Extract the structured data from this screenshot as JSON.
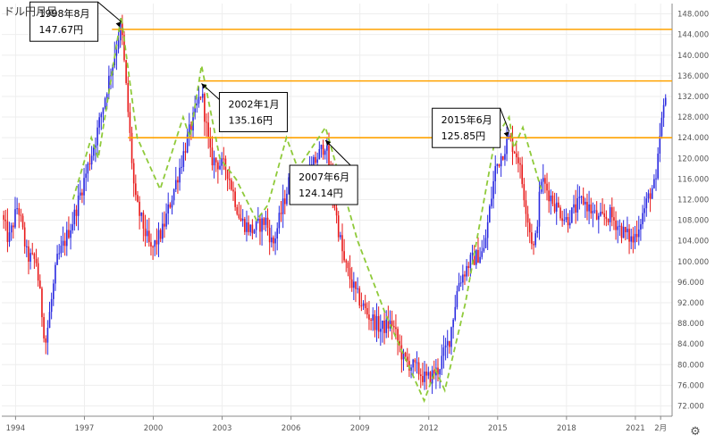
{
  "title": "ドル円月足",
  "settings_icon": "gear-icon",
  "colors": {
    "up": "#2a2ae0",
    "down": "#e81a1a",
    "trend": "#8fca3a",
    "level": "#ffa200",
    "grid": "#eeeeee",
    "axis": "#888888"
  },
  "chart_data": {
    "type": "candlestick",
    "ylim": [
      70,
      150
    ],
    "xlim": [
      1993.4,
      2022.6
    ],
    "y_ticks": [
      72,
      76,
      80,
      84,
      88,
      92,
      96,
      100,
      104,
      108,
      112,
      116,
      120,
      124,
      128,
      132,
      136,
      140,
      144,
      148
    ],
    "y_tick_labels": [
      "72.000",
      "76.000",
      "80.000",
      "84.000",
      "88.000",
      "92.000",
      "96.000",
      "100.000",
      "104.000",
      "108.000",
      "112.000",
      "116.000",
      "120.000",
      "124.000",
      "128.000",
      "132.000",
      "136.000",
      "140.000",
      "144.000",
      "148.000"
    ],
    "x_ticks": [
      {
        "x": 1994.0,
        "label": "1994"
      },
      {
        "x": 1997.0,
        "label": "1997"
      },
      {
        "x": 2000.0,
        "label": "2000"
      },
      {
        "x": 2003.0,
        "label": "2003"
      },
      {
        "x": 2006.0,
        "label": "2006"
      },
      {
        "x": 2009.0,
        "label": "2009"
      },
      {
        "x": 2012.0,
        "label": "2012"
      },
      {
        "x": 2015.0,
        "label": "2015"
      },
      {
        "x": 2018.0,
        "label": "2018"
      },
      {
        "x": 2021.0,
        "label": "2021"
      },
      {
        "x": 2022.1,
        "label": "2月"
      }
    ],
    "price_path": [
      [
        1993.4,
        109
      ],
      [
        1993.7,
        104
      ],
      [
        1994.1,
        111
      ],
      [
        1994.5,
        101
      ],
      [
        1994.9,
        100
      ],
      [
        1995.3,
        84
      ],
      [
        1995.8,
        100
      ],
      [
        1996.5,
        108
      ],
      [
        1997.0,
        116
      ],
      [
        1997.5,
        124
      ],
      [
        1998.0,
        134
      ],
      [
        1998.6,
        146
      ],
      [
        1999.2,
        112
      ],
      [
        1999.9,
        102
      ],
      [
        2000.4,
        106
      ],
      [
        2000.9,
        114
      ],
      [
        2001.5,
        124
      ],
      [
        2002.1,
        133
      ],
      [
        2002.5,
        120
      ],
      [
        2003.2,
        118
      ],
      [
        2003.8,
        108
      ],
      [
        2004.3,
        106
      ],
      [
        2004.9,
        108
      ],
      [
        2005.2,
        103
      ],
      [
        2005.6,
        110
      ],
      [
        2006.0,
        117
      ],
      [
        2006.5,
        114
      ],
      [
        2007.0,
        119
      ],
      [
        2007.5,
        123
      ],
      [
        2008.0,
        108
      ],
      [
        2008.3,
        100
      ],
      [
        2008.8,
        94
      ],
      [
        2009.3,
        90
      ],
      [
        2009.9,
        87
      ],
      [
        2010.4,
        88
      ],
      [
        2010.9,
        81
      ],
      [
        2011.5,
        79
      ],
      [
        2011.9,
        77
      ],
      [
        2012.4,
        79
      ],
      [
        2012.9,
        85
      ],
      [
        2013.3,
        96
      ],
      [
        2013.8,
        100
      ],
      [
        2014.4,
        102
      ],
      [
        2014.9,
        118
      ],
      [
        2015.5,
        124
      ],
      [
        2015.9,
        120
      ],
      [
        2016.4,
        106
      ],
      [
        2016.6,
        102
      ],
      [
        2016.9,
        116
      ],
      [
        2017.5,
        111
      ],
      [
        2018.0,
        108
      ],
      [
        2018.7,
        112
      ],
      [
        2019.4,
        108
      ],
      [
        2019.9,
        109
      ],
      [
        2020.4,
        106
      ],
      [
        2020.9,
        104
      ],
      [
        2021.3,
        109
      ],
      [
        2021.7,
        114
      ],
      [
        2021.9,
        115
      ],
      [
        2022.1,
        126
      ],
      [
        2022.35,
        132
      ]
    ],
    "trend_lines": [
      {
        "points": [
          [
            1996.5,
            112
          ],
          [
            1997.3,
            124
          ],
          [
            1997.6,
            120
          ],
          [
            1998.6,
            147.5
          ],
          [
            1999.3,
            124
          ],
          [
            2000.3,
            114
          ],
          [
            2001.3,
            128
          ],
          [
            2001.6,
            124
          ],
          [
            2002.1,
            138
          ],
          [
            2002.9,
            120
          ],
          [
            2003.6,
            116
          ],
          [
            2004.5,
            108
          ],
          [
            2005.0,
            111
          ],
          [
            2005.8,
            124
          ],
          [
            2006.3,
            118
          ],
          [
            2007.5,
            126
          ],
          [
            2008.9,
            104
          ],
          [
            2010.1,
            90
          ],
          [
            2011.4,
            77
          ],
          [
            2011.8,
            73
          ],
          [
            2012.3,
            79
          ],
          [
            2012.7,
            75
          ],
          [
            2013.6,
            92
          ],
          [
            2014.9,
            124
          ],
          [
            2015.5,
            128
          ],
          [
            2015.7,
            122
          ],
          [
            2016.1,
            126
          ],
          [
            2016.9,
            114
          ]
        ]
      }
    ],
    "levels": [
      {
        "y": 145,
        "x_start": 1998.2
      },
      {
        "y": 135,
        "x_start": 2002.0
      },
      {
        "y": 124,
        "x_start": 1998.9
      }
    ],
    "annotations": [
      {
        "lines": [
          "1998年8月",
          "147.67円"
        ],
        "point": [
          1998.6,
          146.5
        ]
      },
      {
        "lines": [
          "2002年1月",
          "135.16円"
        ],
        "point": [
          2002.1,
          134.5
        ]
      },
      {
        "lines": [
          "2007年6月",
          "124.14円"
        ],
        "point": [
          2007.5,
          123.5
        ]
      },
      {
        "lines": [
          "2015年6月",
          "125.85円"
        ],
        "point": [
          2015.5,
          125.2
        ]
      }
    ]
  }
}
